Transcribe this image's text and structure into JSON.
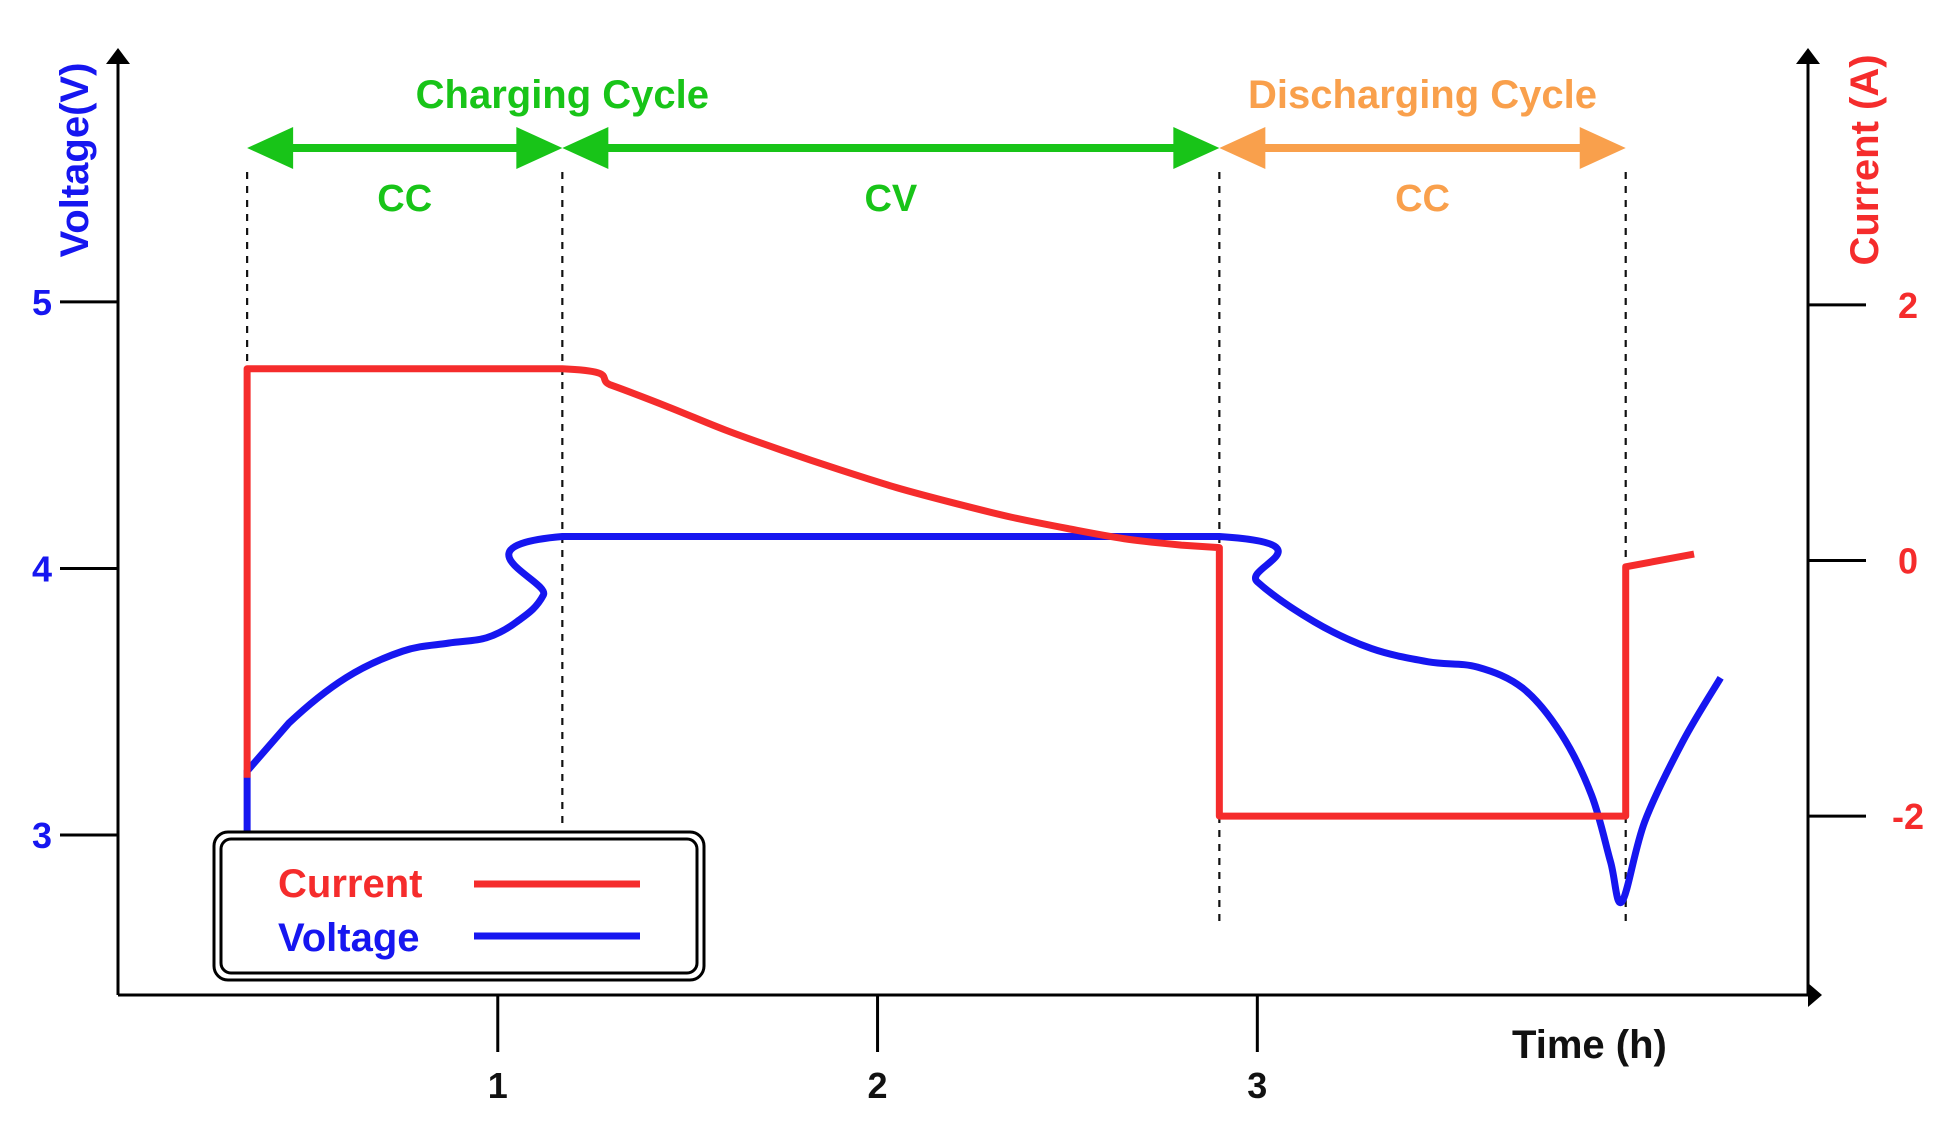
{
  "chart_data": {
    "type": "line",
    "xlabel": "Time (h)",
    "ylabel_left": "Voltage(V)",
    "ylabel_right": "Current (A)",
    "x_ticks": [
      "1",
      "2",
      "3"
    ],
    "y_left_ticks": [
      "3",
      "4",
      "5"
    ],
    "y_right_ticks": [
      "-2",
      "0",
      "2"
    ],
    "x_range": [
      0,
      4.45
    ],
    "y_left_range": [
      2.4,
      5.9
    ],
    "y_right_range": [
      -3.4,
      3.9
    ],
    "phases": [
      {
        "group": "Charging Cycle",
        "label": "CC",
        "start": 0.34,
        "end": 1.17
      },
      {
        "group": "Charging Cycle",
        "label": "CV",
        "start": 1.17,
        "end": 2.9
      },
      {
        "group": "Discharging Cycle",
        "label": "CC",
        "start": 2.9,
        "end": 3.97
      }
    ],
    "groups": [
      {
        "name": "Charging Cycle",
        "color": "#18c418"
      },
      {
        "name": "Discharging Cycle",
        "color": "#f9a04c"
      }
    ],
    "series": [
      {
        "name": "Current",
        "axis": "right",
        "color": "#f52c2c",
        "points": [
          [
            0.34,
            -1.7
          ],
          [
            0.34,
            1.5
          ],
          [
            1.17,
            1.5
          ],
          [
            1.3,
            1.37
          ],
          [
            1.45,
            1.2
          ],
          [
            1.6,
            1.02
          ],
          [
            1.75,
            0.86
          ],
          [
            1.9,
            0.71
          ],
          [
            2.05,
            0.57
          ],
          [
            2.2,
            0.45
          ],
          [
            2.35,
            0.34
          ],
          [
            2.5,
            0.25
          ],
          [
            2.65,
            0.17
          ],
          [
            2.8,
            0.12
          ],
          [
            2.9,
            0.1
          ],
          [
            2.9,
            -2.0
          ],
          [
            3.97,
            -2.0
          ],
          [
            3.97,
            -0.05
          ],
          [
            4.15,
            0.05
          ]
        ]
      },
      {
        "name": "Voltage",
        "axis": "left",
        "color": "#1616f0",
        "points": [
          [
            0.34,
            3.0
          ],
          [
            0.34,
            3.24
          ],
          [
            0.45,
            3.42
          ],
          [
            0.6,
            3.59
          ],
          [
            0.75,
            3.69
          ],
          [
            0.87,
            3.72
          ],
          [
            0.97,
            3.74
          ],
          [
            1.05,
            3.8
          ],
          [
            1.12,
            3.9
          ],
          [
            1.17,
            4.12
          ],
          [
            2.9,
            4.12
          ],
          [
            3.0,
            3.95
          ],
          [
            3.15,
            3.8
          ],
          [
            3.3,
            3.7
          ],
          [
            3.45,
            3.65
          ],
          [
            3.58,
            3.63
          ],
          [
            3.7,
            3.55
          ],
          [
            3.8,
            3.38
          ],
          [
            3.88,
            3.15
          ],
          [
            3.93,
            2.9
          ],
          [
            3.96,
            2.75
          ],
          [
            4.02,
            3.05
          ],
          [
            4.12,
            3.35
          ],
          [
            4.22,
            3.59
          ]
        ]
      }
    ]
  }
}
